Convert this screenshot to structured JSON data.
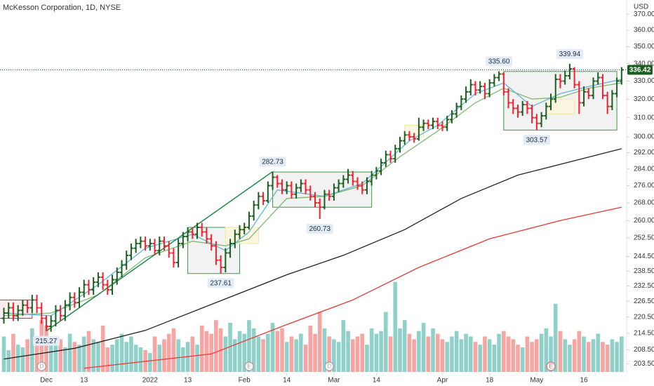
{
  "chart_data": {
    "type": "ohlc",
    "title": "McKesson Corporation, 1D, NYSE",
    "currency": "USD",
    "log_scale": true,
    "ylim": [
      200,
      375
    ],
    "yticks": [
      {
        "value": 370,
        "label": "370.00"
      },
      {
        "value": 360,
        "label": "360.00"
      },
      {
        "value": 350,
        "label": "350.00"
      },
      {
        "value": 340,
        "label": "340.00"
      },
      {
        "value": 330,
        "label": "330.00"
      },
      {
        "value": 320,
        "label": "320.00"
      },
      {
        "value": 310,
        "label": "310.00"
      },
      {
        "value": 300,
        "label": "300.00"
      },
      {
        "value": 292,
        "label": "292.00"
      },
      {
        "value": 284,
        "label": "284.00"
      },
      {
        "value": 276,
        "label": "276.00"
      },
      {
        "value": 268,
        "label": "268.00"
      },
      {
        "value": 260,
        "label": "260.00"
      },
      {
        "value": 252.5,
        "label": "252.50"
      },
      {
        "value": 244.5,
        "label": "244.50"
      },
      {
        "value": 238.5,
        "label": "238.50"
      },
      {
        "value": 232.5,
        "label": "232.50"
      },
      {
        "value": 226.5,
        "label": "226.50"
      },
      {
        "value": 220.5,
        "label": "220.50"
      },
      {
        "value": 214.5,
        "label": "214.50"
      },
      {
        "value": 208.5,
        "label": "208.50"
      },
      {
        "value": 203.5,
        "label": "203.50"
      }
    ],
    "xticks": [
      {
        "value": 9,
        "label": "Dec"
      },
      {
        "value": 17,
        "label": "13"
      },
      {
        "value": 31,
        "label": "2022"
      },
      {
        "value": 39,
        "label": "13"
      },
      {
        "value": 51,
        "label": "Feb"
      },
      {
        "value": 60,
        "label": "14"
      },
      {
        "value": 70,
        "label": "Mar"
      },
      {
        "value": 79,
        "label": "14"
      },
      {
        "value": 93,
        "label": "Apr"
      },
      {
        "value": 103,
        "label": "18"
      },
      {
        "value": 113,
        "label": "May"
      },
      {
        "value": 123,
        "label": "16"
      }
    ],
    "up_color": "#1b5e20",
    "down_color": "#f2212f",
    "bars": [
      [
        220,
        224,
        218,
        222
      ],
      [
        222,
        226,
        220,
        224
      ],
      [
        224,
        226,
        219,
        221
      ],
      [
        221,
        225,
        219,
        223
      ],
      [
        223,
        227,
        221,
        225
      ],
      [
        225,
        227,
        222,
        224
      ],
      [
        224,
        229,
        222,
        227
      ],
      [
        227,
        229,
        222,
        224
      ],
      [
        224,
        226,
        218,
        220
      ],
      [
        220,
        221,
        215.27,
        217
      ],
      [
        217,
        221,
        215,
        219
      ],
      [
        219,
        225,
        217,
        223
      ],
      [
        223,
        225,
        219,
        221
      ],
      [
        221,
        227,
        219,
        225
      ],
      [
        225,
        230,
        223,
        228
      ],
      [
        228,
        230,
        224,
        226
      ],
      [
        226,
        232,
        224,
        230
      ],
      [
        230,
        235,
        228,
        233
      ],
      [
        233,
        235,
        229,
        231
      ],
      [
        231,
        236,
        229,
        234
      ],
      [
        234,
        238,
        232,
        236
      ],
      [
        236,
        238,
        231,
        233
      ],
      [
        233,
        235,
        229,
        231
      ],
      [
        231,
        237,
        229,
        235
      ],
      [
        235,
        240,
        233,
        238
      ],
      [
        238,
        243,
        236,
        241
      ],
      [
        241,
        247,
        239,
        245
      ],
      [
        245,
        250,
        243,
        248
      ],
      [
        248,
        252,
        246,
        250
      ],
      [
        250,
        253,
        248,
        251
      ],
      [
        251,
        253,
        247,
        249
      ],
      [
        249,
        252,
        247,
        250
      ],
      [
        250,
        252,
        245,
        247
      ],
      [
        247,
        253,
        245,
        251
      ],
      [
        251,
        253,
        247,
        249
      ],
      [
        249,
        251,
        244,
        246
      ],
      [
        246,
        248,
        240,
        242
      ],
      [
        242,
        252,
        240,
        250
      ],
      [
        250,
        255,
        248,
        253
      ],
      [
        253,
        257,
        251,
        255
      ],
      [
        255,
        257,
        252,
        254
      ],
      [
        254,
        259,
        252,
        257
      ],
      [
        257,
        259,
        253,
        255
      ],
      [
        255,
        257,
        250,
        252
      ],
      [
        252,
        254,
        247,
        249
      ],
      [
        249,
        251,
        241,
        243
      ],
      [
        243,
        245,
        237.61,
        240
      ],
      [
        240,
        248,
        238,
        246
      ],
      [
        246,
        252,
        244,
        250
      ],
      [
        250,
        256,
        248,
        254
      ],
      [
        254,
        258,
        252,
        256
      ],
      [
        256,
        259,
        254,
        257
      ],
      [
        257,
        264,
        256,
        262
      ],
      [
        262,
        269,
        260,
        267
      ],
      [
        267,
        273,
        265,
        271
      ],
      [
        271,
        273,
        267,
        269
      ],
      [
        269,
        278,
        268,
        276
      ],
      [
        276,
        282.73,
        274,
        280
      ],
      [
        280,
        281,
        275,
        277
      ],
      [
        277,
        279,
        272,
        274
      ],
      [
        274,
        278,
        272,
        276
      ],
      [
        276,
        278,
        270,
        272
      ],
      [
        272,
        277,
        270,
        275
      ],
      [
        275,
        279,
        273,
        277
      ],
      [
        277,
        279,
        272,
        274
      ],
      [
        274,
        276,
        269,
        271
      ],
      [
        271,
        273,
        266,
        268
      ],
      [
        268,
        270,
        260.73,
        266
      ],
      [
        266,
        274,
        265,
        272
      ],
      [
        272,
        274,
        269,
        271
      ],
      [
        271,
        277,
        269,
        275
      ],
      [
        275,
        279,
        273,
        277
      ],
      [
        277,
        281,
        275,
        279
      ],
      [
        279,
        284,
        277,
        281
      ],
      [
        281,
        283,
        276,
        278
      ],
      [
        278,
        280,
        274,
        276
      ],
      [
        276,
        278,
        272,
        274
      ],
      [
        274,
        280,
        272,
        278
      ],
      [
        278,
        283,
        276,
        281
      ],
      [
        281,
        285,
        279,
        283
      ],
      [
        283,
        289,
        281,
        287
      ],
      [
        287,
        293,
        285,
        291
      ],
      [
        291,
        293,
        287,
        289
      ],
      [
        289,
        296,
        287,
        294
      ],
      [
        294,
        300,
        292,
        298
      ],
      [
        298,
        303,
        296,
        301
      ],
      [
        301,
        303,
        298,
        300
      ],
      [
        300,
        302,
        297,
        299
      ],
      [
        299,
        310,
        298,
        305
      ],
      [
        305,
        309,
        303,
        307
      ],
      [
        307,
        309,
        304,
        306
      ],
      [
        306,
        310,
        304,
        308
      ],
      [
        308,
        310,
        304,
        306
      ],
      [
        306,
        308,
        303,
        305
      ],
      [
        305,
        311,
        303,
        309
      ],
      [
        309,
        314,
        307,
        312
      ],
      [
        312,
        318,
        310,
        316
      ],
      [
        316,
        322,
        314,
        320
      ],
      [
        320,
        327,
        318,
        324
      ],
      [
        324,
        331,
        322,
        328
      ],
      [
        328,
        330,
        322,
        325
      ],
      [
        325,
        330,
        323,
        327
      ],
      [
        327,
        329,
        320,
        323
      ],
      [
        323,
        331,
        321,
        329
      ],
      [
        329,
        334,
        327,
        332
      ],
      [
        332,
        335.6,
        330,
        334
      ],
      [
        334,
        335,
        322,
        324
      ],
      [
        324,
        326,
        315,
        318
      ],
      [
        318,
        320,
        312,
        315
      ],
      [
        315,
        317,
        310,
        313
      ],
      [
        313,
        319,
        311,
        317
      ],
      [
        317,
        319,
        312,
        315
      ],
      [
        315,
        317,
        307,
        310
      ],
      [
        310,
        312,
        303.57,
        307
      ],
      [
        307,
        313,
        305,
        311
      ],
      [
        311,
        318,
        309,
        316
      ],
      [
        316,
        323,
        314,
        320
      ],
      [
        320,
        334,
        318,
        331
      ],
      [
        331,
        334,
        326,
        330
      ],
      [
        330,
        336,
        328,
        333
      ],
      [
        333,
        339.94,
        331,
        337
      ],
      [
        337,
        338,
        326,
        328
      ],
      [
        328,
        330,
        312,
        318
      ],
      [
        318,
        327,
        316,
        324
      ],
      [
        324,
        326,
        320,
        322
      ],
      [
        322,
        332,
        320,
        330
      ],
      [
        330,
        335,
        328,
        332
      ],
      [
        332,
        334,
        320,
        322
      ],
      [
        322,
        324,
        312,
        316
      ],
      [
        316,
        325,
        314,
        323
      ],
      [
        323,
        332,
        321,
        330
      ],
      [
        330,
        338,
        328,
        336.42
      ]
    ],
    "volume_up_color": "#8fd0c9",
    "volume_down_color": "#f6a5a3",
    "volume_lim": [
      0,
      4.5
    ],
    "volume": [
      1.3,
      0.8,
      1.4,
      1.0,
      0.9,
      1.2,
      1.6,
      1.1,
      1.9,
      1.7,
      1.3,
      1.0,
      1.2,
      0.9,
      1.4,
      1.1,
      1.0,
      1.3,
      1.5,
      1.2,
      1.1,
      1.7,
      0.9,
      1.0,
      1.2,
      1.4,
      1.1,
      1.3,
      1.0,
      0.9,
      0.8,
      0.7,
      1.3,
      1.0,
      1.2,
      1.4,
      1.6,
      1.2,
      0.9,
      1.1,
      1.3,
      1.0,
      1.7,
      1.5,
      1.4,
      1.9,
      1.6,
      1.3,
      1.8,
      1.2,
      1.5,
      1.4,
      1.9,
      1.6,
      1.3,
      1.2,
      1.4,
      1.8,
      1.5,
      1.6,
      1.1,
      1.3,
      1.2,
      1.4,
      1.0,
      1.7,
      1.4,
      2.2,
      1.6,
      1.3,
      1.2,
      1.1,
      1.9,
      1.5,
      1.2,
      1.3,
      1.4,
      1.0,
      1.6,
      1.4,
      1.5,
      2.2,
      1.3,
      3.3,
      1.6,
      1.9,
      1.4,
      1.2,
      1.5,
      1.8,
      1.3,
      1.6,
      1.4,
      1.2,
      1.1,
      1.3,
      1.5,
      1.2,
      1.4,
      1.3,
      1.1,
      1.0,
      1.3,
      1.2,
      1.0,
      1.4,
      1.5,
      1.3,
      1.2,
      1.0,
      0.9,
      1.3,
      1.1,
      1.2,
      1.4,
      1.6,
      1.3,
      2.5,
      1.5,
      1.2,
      1.0,
      1.2,
      1.5,
      1.3,
      1.1,
      1.2,
      1.4,
      1.1,
      1.0,
      1.2,
      1.1,
      1.3
    ],
    "moving_averages": [
      {
        "color": "#e53935",
        "x": [
          17,
          44,
          59,
          74,
          88,
          103,
          118,
          131
        ],
        "values": [
          202,
          207,
          217,
          227,
          240,
          252,
          260,
          266
        ]
      },
      {
        "color": "#222222",
        "x": [
          0,
          15,
          30,
          45,
          60,
          72,
          85,
          97,
          109,
          121,
          131
        ],
        "values": [
          205.2,
          209,
          215.5,
          226,
          237,
          245,
          256,
          270,
          281,
          288,
          294
        ]
      },
      {
        "color": "#7fb972",
        "x": [
          0,
          10,
          20,
          30,
          40,
          47,
          52,
          60,
          68,
          76,
          84,
          92,
          100,
          106,
          112,
          118,
          124,
          131
        ],
        "values": [
          221,
          222,
          229,
          244,
          251,
          249,
          252,
          270,
          271,
          276,
          290,
          303,
          318,
          326,
          320,
          321,
          326,
          329
        ]
      },
      {
        "color": "#5fb6d9",
        "x": [
          0,
          10,
          20,
          30,
          40,
          47,
          52,
          58,
          68,
          76,
          86,
          92,
          100,
          106,
          112,
          118,
          124,
          131
        ],
        "values": [
          222,
          221,
          233,
          248,
          254,
          247,
          255,
          274,
          271,
          277,
          298,
          306,
          323,
          329,
          316,
          323,
          327,
          331
        ]
      }
    ],
    "boxes": [
      {
        "x0": -1,
        "x1": 6,
        "y0": 220,
        "y1": 227,
        "color": "#f2212f",
        "fill": "#fbe9e8"
      },
      {
        "x0": 39,
        "x1": 50,
        "y0": 237.5,
        "y1": 257,
        "color": "#2e9e45",
        "fill": "#eef0ee"
      },
      {
        "x0": 47,
        "x1": 54,
        "y0": 250,
        "y1": 257,
        "color": "#f3e7a6",
        "fill": "#fbf6dc"
      },
      {
        "x0": 57,
        "x1": 78,
        "y0": 266,
        "y1": 282.5,
        "color": "#2e9e45",
        "fill": "#eef0ee"
      },
      {
        "x0": 85,
        "x1": 89,
        "y0": 300,
        "y1": 306,
        "color": "#f3e7a6",
        "fill": "#fbf6dc"
      },
      {
        "x0": 106,
        "x1": 130,
        "y0": 303.5,
        "y1": 335.5,
        "color": "#2e9e45",
        "fill": "#eef0ee"
      },
      {
        "x0": 115,
        "x1": 121,
        "y0": 312,
        "y1": 320,
        "color": "#f3e7a6",
        "fill": "#fbf6dc"
      }
    ],
    "trendline": {
      "color": "#1e8a4c",
      "x": [
        9,
        57
      ],
      "values": [
        215.27,
        282.73
      ]
    },
    "annotations": [
      {
        "x": 57,
        "value": 282.73,
        "side": "above"
      },
      {
        "x": 67,
        "value": 260.73,
        "side": "below"
      },
      {
        "x": 46,
        "value": 237.61,
        "side": "below"
      },
      {
        "x": 9,
        "value": 215.27,
        "side": "below"
      },
      {
        "x": 105,
        "value": 335.6,
        "label": "335.60",
        "side": "above"
      },
      {
        "x": 120,
        "value": 339.94,
        "side": "above"
      },
      {
        "x": 113,
        "value": 303.57,
        "side": "below"
      }
    ],
    "events": [
      {
        "x": 8,
        "label": "D",
        "color": "#9e9e9e"
      },
      {
        "x": 52,
        "label": "E",
        "color": "#9e9e9e"
      },
      {
        "x": 69,
        "label": "D",
        "color": "#9e9e9e"
      },
      {
        "x": 116,
        "label": "E",
        "color": "#e06060"
      }
    ]
  }
}
